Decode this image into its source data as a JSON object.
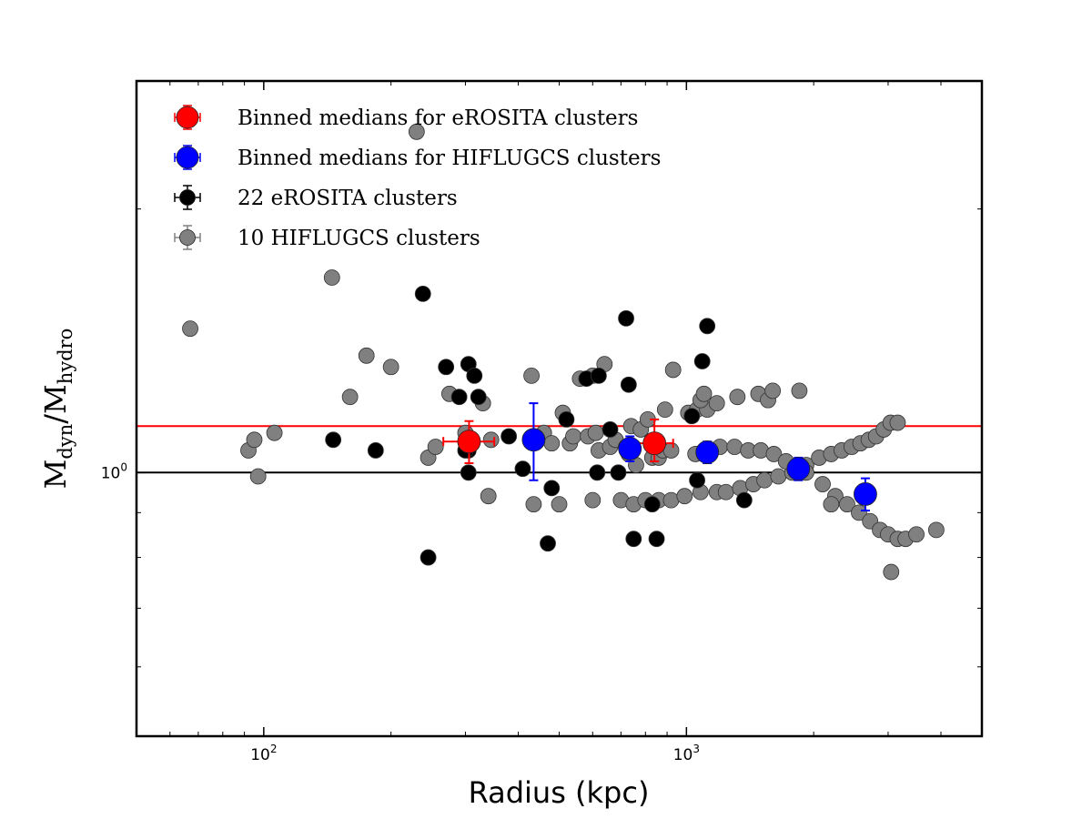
{
  "chart_data": {
    "type": "scatter",
    "title": "",
    "xlabel": "Radius (kpc)",
    "ylabel": {
      "main": "M",
      "num_sub": "dyn",
      "den_sub": "hydro"
    },
    "xscale": "log",
    "yscale": "log",
    "xlim": [
      50,
      5000
    ],
    "ylim": [
      0.5,
      2.8
    ],
    "xticks": [
      {
        "value": 100,
        "base": "10",
        "exp": "2"
      },
      {
        "value": 1000,
        "base": "10",
        "exp": "3"
      }
    ],
    "yticks": [
      {
        "value": 1.0,
        "base": "10",
        "exp": "0"
      }
    ],
    "hlines": [
      {
        "name": "unity",
        "y": 1.0,
        "color": "#000000"
      },
      {
        "name": "erosita-median",
        "y": 1.13,
        "color": "#ff0000"
      }
    ],
    "legend_position": "top-left",
    "series": [
      {
        "name": "10 HIFLUGCS clusters",
        "color": "#808080",
        "marker": "circle",
        "points": [
          [
            67,
            1.46
          ],
          [
            92,
            1.06
          ],
          [
            95,
            1.09
          ],
          [
            97,
            0.99
          ],
          [
            106,
            1.11
          ],
          [
            145,
            1.67
          ],
          [
            160,
            1.22
          ],
          [
            175,
            1.36
          ],
          [
            200,
            1.32
          ],
          [
            230,
            2.45
          ],
          [
            245,
            1.04
          ],
          [
            255,
            1.07
          ],
          [
            275,
            1.23
          ],
          [
            300,
            1.11
          ],
          [
            330,
            1.2
          ],
          [
            345,
            1.09
          ],
          [
            340,
            0.94
          ],
          [
            430,
            1.29
          ],
          [
            435,
            0.92
          ],
          [
            460,
            1.11
          ],
          [
            480,
            1.08
          ],
          [
            500,
            0.92
          ],
          [
            510,
            1.17
          ],
          [
            530,
            1.08
          ],
          [
            540,
            1.1
          ],
          [
            560,
            1.28
          ],
          [
            585,
            1.1
          ],
          [
            600,
            1.29
          ],
          [
            610,
            1.11
          ],
          [
            620,
            1.06
          ],
          [
            600,
            0.93
          ],
          [
            640,
            1.33
          ],
          [
            660,
            1.07
          ],
          [
            680,
            1.09
          ],
          [
            720,
            1.07
          ],
          [
            730,
            1.05
          ],
          [
            740,
            1.13
          ],
          [
            760,
            1.02
          ],
          [
            780,
            1.12
          ],
          [
            810,
            1.15
          ],
          [
            830,
            1.04
          ],
          [
            860,
            1.04
          ],
          [
            880,
            1.06
          ],
          [
            890,
            1.18
          ],
          [
            920,
            1.06
          ],
          [
            930,
            1.31
          ],
          [
            700,
            0.93
          ],
          [
            750,
            0.92
          ],
          [
            800,
            0.93
          ],
          [
            860,
            0.93
          ],
          [
            920,
            0.93
          ],
          [
            990,
            0.94
          ],
          [
            1080,
            0.95
          ],
          [
            1180,
            0.95
          ],
          [
            1240,
            0.95
          ],
          [
            1340,
            0.96
          ],
          [
            1440,
            0.97
          ],
          [
            1530,
            0.98
          ],
          [
            1650,
            0.99
          ],
          [
            1780,
            1.0
          ],
          [
            1920,
            1.02
          ],
          [
            2060,
            1.04
          ],
          [
            2200,
            1.05
          ],
          [
            2330,
            1.06
          ],
          [
            2460,
            1.07
          ],
          [
            2580,
            1.08
          ],
          [
            2700,
            1.09
          ],
          [
            2810,
            1.1
          ],
          [
            2930,
            1.12
          ],
          [
            3040,
            1.14
          ],
          [
            3160,
            1.14
          ],
          [
            1010,
            1.17
          ],
          [
            1060,
            1.18
          ],
          [
            1120,
            1.18
          ],
          [
            1200,
            1.07
          ],
          [
            1300,
            1.07
          ],
          [
            1400,
            1.06
          ],
          [
            1500,
            1.06
          ],
          [
            1610,
            1.05
          ],
          [
            1720,
            1.03
          ],
          [
            1850,
            1.0
          ],
          [
            1920,
            1.0
          ],
          [
            2100,
            0.97
          ],
          [
            2250,
            0.94
          ],
          [
            2400,
            0.92
          ],
          [
            2560,
            0.9
          ],
          [
            2720,
            0.88
          ],
          [
            2870,
            0.86
          ],
          [
            3000,
            0.85
          ],
          [
            3160,
            0.84
          ],
          [
            3300,
            0.84
          ],
          [
            3500,
            0.85
          ],
          [
            3900,
            0.86
          ],
          [
            3050,
            0.77
          ],
          [
            2200,
            0.92
          ],
          [
            1050,
            1.05
          ],
          [
            1080,
            1.21
          ],
          [
            1180,
            1.2
          ],
          [
            1320,
            1.22
          ],
          [
            1480,
            1.23
          ],
          [
            1560,
            1.21
          ],
          [
            1600,
            1.24
          ],
          [
            1850,
            1.24
          ],
          [
            1100,
            1.23
          ]
        ]
      },
      {
        "name": "22 eROSITA clusters",
        "color": "#000000",
        "marker": "circle",
        "points": [
          [
            146,
            1.09
          ],
          [
            184,
            1.06
          ],
          [
            238,
            1.6
          ],
          [
            245,
            0.8
          ],
          [
            270,
            1.32
          ],
          [
            290,
            1.22
          ],
          [
            305,
            1.33
          ],
          [
            305,
            1.06
          ],
          [
            315,
            1.29
          ],
          [
            322,
            1.22
          ],
          [
            305,
            1.0
          ],
          [
            380,
            1.1
          ],
          [
            410,
            1.01
          ],
          [
            480,
            0.96
          ],
          [
            470,
            0.83
          ],
          [
            520,
            1.15
          ],
          [
            580,
            1.28
          ],
          [
            620,
            1.29
          ],
          [
            615,
            1.0
          ],
          [
            660,
            1.12
          ],
          [
            690,
            1.0
          ],
          [
            720,
            1.5
          ],
          [
            730,
            1.26
          ],
          [
            750,
            0.84
          ],
          [
            830,
            0.92
          ],
          [
            850,
            0.84
          ],
          [
            1030,
            1.16
          ],
          [
            1060,
            0.98
          ],
          [
            1090,
            1.34
          ],
          [
            1120,
            1.47
          ],
          [
            1370,
            0.93
          ],
          [
            300,
            1.06
          ]
        ]
      },
      {
        "name": "Binned medians for eROSITA clusters",
        "color": "#ff0000",
        "marker": "circle",
        "large": true,
        "points": [
          {
            "x": 306,
            "y": 1.085,
            "xerr": [
              40,
              45
            ],
            "yerr": [
              0.06,
              0.06
            ]
          },
          {
            "x": 840,
            "y": 1.08,
            "xerr": [
              105,
              90
            ],
            "yerr": [
              0.05,
              0.07
            ]
          }
        ]
      },
      {
        "name": "Binned medians for HIFLUGCS clusters",
        "color": "#0000ff",
        "marker": "circle",
        "large": true,
        "points": [
          {
            "x": 435,
            "y": 1.09,
            "xerr": [
              0,
              0
            ],
            "yerr": [
              0.11,
              0.11
            ]
          },
          {
            "x": 735,
            "y": 1.065,
            "xerr": [
              0,
              0
            ],
            "yerr": [
              0.035,
              0.035
            ]
          },
          {
            "x": 1120,
            "y": 1.055,
            "xerr": [
              0,
              0
            ],
            "yerr": [
              0.03,
              0.03
            ]
          },
          {
            "x": 1840,
            "y": 1.01,
            "xerr": [
              0,
              0
            ],
            "yerr": [
              0.03,
              0.03
            ]
          },
          {
            "x": 2650,
            "y": 0.945,
            "xerr": [
              0,
              0
            ],
            "yerr": [
              0.04,
              0.04
            ]
          }
        ]
      }
    ],
    "legend": [
      {
        "label": "Binned medians for eROSITA clusters",
        "color": "#ff0000",
        "large": true
      },
      {
        "label": "Binned medians for HIFLUGCS clusters",
        "color": "#0000ff",
        "large": true
      },
      {
        "label": "22 eROSITA clusters",
        "color": "#000000",
        "large": false
      },
      {
        "label": "10 HIFLUGCS clusters",
        "color": "#808080",
        "large": false
      }
    ]
  }
}
